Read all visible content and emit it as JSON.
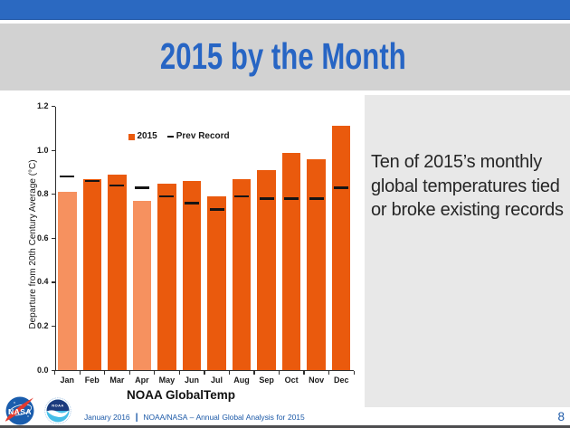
{
  "header": {
    "title": "2015 by the Month"
  },
  "side_panel": {
    "text": "Ten of 2015’s monthly global temperatures tied or broke existing records"
  },
  "chart_data": {
    "type": "bar",
    "categories": [
      "Jan",
      "Feb",
      "Mar",
      "Apr",
      "May",
      "Jun",
      "Jul",
      "Aug",
      "Sep",
      "Oct",
      "Nov",
      "Dec"
    ],
    "series": [
      {
        "name": "2015",
        "type": "bar",
        "values": [
          0.81,
          0.87,
          0.89,
          0.77,
          0.85,
          0.86,
          0.79,
          0.87,
          0.91,
          0.99,
          0.96,
          1.11
        ]
      },
      {
        "name": "Prev Record",
        "type": "dash",
        "values": [
          0.88,
          0.86,
          0.84,
          0.83,
          0.79,
          0.76,
          0.73,
          0.79,
          0.78,
          0.78,
          0.78,
          0.83
        ]
      }
    ],
    "months_without_new_record": [
      "Jan",
      "Apr"
    ],
    "xlabel": "NOAA GlobalTemp",
    "ylabel": "Departure from 20th Century Average (°C)",
    "ylim": [
      0,
      1.2
    ],
    "yticks": [
      0.0,
      0.2,
      0.4,
      0.6,
      0.8,
      1.0,
      1.2
    ],
    "ytick_format_decimals": 1,
    "legend_position": "top-center",
    "grid": false,
    "bar_color": "#EA5A0D",
    "bar_color_no_record": "#F6915F",
    "dash_color": "#141414"
  },
  "footer": {
    "date": "January 2016",
    "separator": "|",
    "title": "NOAA/NASA – Annual  Global  Analysis  for  2015",
    "page_number": "8",
    "nasa_logo_label": "NASA",
    "noaa_logo_label": "NOAA"
  },
  "theme": {
    "top_bar_color": "#2B69C1",
    "top_bar_edge_color": "#1E55A4",
    "title_band_color": "#D2D2D2",
    "title_text_color": "#2765C4",
    "side_panel_color": "#E8E8E8",
    "footer_text_color": "#1D5AA8",
    "bottom_line_color": "#4E4E50"
  }
}
